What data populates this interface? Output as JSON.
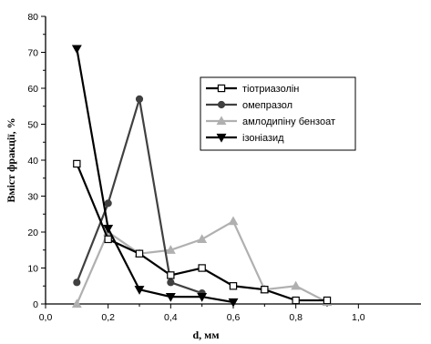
{
  "chart_data": {
    "type": "line",
    "xlabel": "d, мм",
    "ylabel": "Вміст фракції, %",
    "xlim": [
      0.0,
      1.2
    ],
    "ylim": [
      0,
      80
    ],
    "x_ticks": [
      "0,0",
      "0,2",
      "0,4",
      "0,6",
      "0,8",
      "1,0"
    ],
    "y_ticks": [
      "0",
      "10",
      "20",
      "30",
      "40",
      "50",
      "60",
      "70",
      "80"
    ],
    "grid": false,
    "legend_position": "upper-right",
    "series": [
      {
        "name": "тіотриазолін",
        "color": "#000000",
        "marker": "open-square",
        "x": [
          0.1,
          0.2,
          0.3,
          0.4,
          0.5,
          0.6,
          0.7,
          0.8,
          0.9
        ],
        "y": [
          39,
          18,
          14,
          8,
          10,
          5,
          4,
          1,
          1
        ]
      },
      {
        "name": "омепразол",
        "color": "#404040",
        "marker": "filled-circle",
        "x": [
          0.1,
          0.2,
          0.3,
          0.4,
          0.5
        ],
        "y": [
          6,
          28,
          57,
          6,
          3
        ]
      },
      {
        "name": "амлодипіну бензоат",
        "color": "#b0b0b0",
        "marker": "filled-triangle-up",
        "x": [
          0.1,
          0.2,
          0.3,
          0.4,
          0.5,
          0.6,
          0.7,
          0.8,
          0.9
        ],
        "y": [
          0,
          20,
          14,
          15,
          18,
          23,
          4,
          5,
          0.5
        ]
      },
      {
        "name": "ізоніазид",
        "color": "#000000",
        "marker": "filled-triangle-down",
        "x": [
          0.1,
          0.2,
          0.3,
          0.4,
          0.5,
          0.6
        ],
        "y": [
          71,
          21,
          4,
          2,
          2,
          0.5
        ]
      }
    ]
  }
}
